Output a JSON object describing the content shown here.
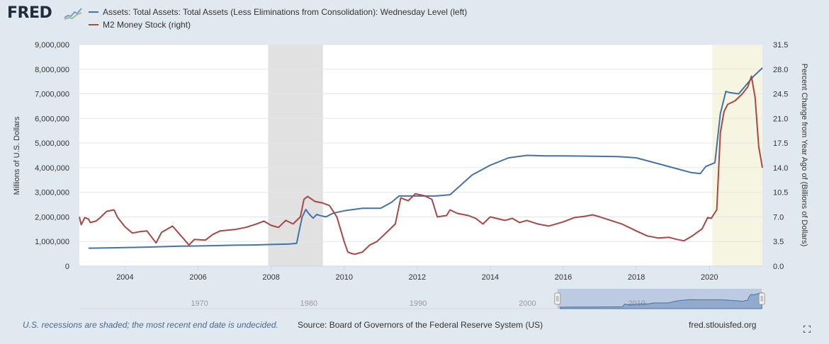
{
  "brand": {
    "logo_text": "FRED"
  },
  "legend": [
    {
      "label": "Assets: Total Assets: Total Assets (Less Eliminations from Consolidation): Wednesday Level (left)",
      "color": "#4572a7"
    },
    {
      "label": "M2 Money Stock (right)",
      "color": "#aa4643"
    }
  ],
  "footer": {
    "note": "U.S. recessions are shaded; the most recent end date is undecided.",
    "source": "Source: Board of Governors of the Federal Reserve System (US)",
    "site": "fred.stlouisfed.org"
  },
  "chart_data": {
    "type": "line",
    "xlabel": "",
    "x_range": [
      2002.75,
      2021.45
    ],
    "x_ticks": [
      "2004",
      "2006",
      "2008",
      "2010",
      "2012",
      "2014",
      "2016",
      "2018",
      "2020"
    ],
    "ylabel_left": "Millions of U.S. Dollars",
    "ylim_left": [
      0,
      9000000
    ],
    "y_ticks_left": [
      "0",
      "1,000,000",
      "2,000,000",
      "3,000,000",
      "4,000,000",
      "5,000,000",
      "6,000,000",
      "7,000,000",
      "8,000,000",
      "9,000,000"
    ],
    "ylabel_right": "Percent Change from Year Ago of (Billions of Dollars)",
    "ylim_right": [
      0,
      31.5
    ],
    "y_ticks_right": [
      "0.0",
      "3.5",
      "7.0",
      "10.5",
      "14.0",
      "17.5",
      "21.0",
      "24.5",
      "28.0",
      "31.5"
    ],
    "grid": true,
    "shaded_periods": [
      {
        "start": 2007.92,
        "end": 2009.42,
        "label": "recession",
        "color": "#e1e1e1"
      },
      {
        "start": 2020.08,
        "end": 2021.45,
        "label": "recession (end undecided)",
        "color": "#f5f5e1"
      }
    ],
    "series": [
      {
        "axis": "left",
        "color": "#4572a7",
        "points": [
          [
            2003.0,
            730000
          ],
          [
            2003.5,
            740000
          ],
          [
            2004.0,
            755000
          ],
          [
            2004.5,
            770000
          ],
          [
            2005.0,
            790000
          ],
          [
            2005.5,
            810000
          ],
          [
            2006.0,
            820000
          ],
          [
            2006.5,
            835000
          ],
          [
            2007.0,
            850000
          ],
          [
            2007.5,
            860000
          ],
          [
            2008.0,
            880000
          ],
          [
            2008.5,
            900000
          ],
          [
            2008.7,
            930000
          ],
          [
            2008.75,
            1300000
          ],
          [
            2008.85,
            2000000
          ],
          [
            2008.95,
            2300000
          ],
          [
            2009.05,
            2100000
          ],
          [
            2009.15,
            1950000
          ],
          [
            2009.25,
            2100000
          ],
          [
            2009.35,
            2050000
          ],
          [
            2009.5,
            2000000
          ],
          [
            2009.7,
            2150000
          ],
          [
            2010.0,
            2250000
          ],
          [
            2010.5,
            2350000
          ],
          [
            2011.0,
            2350000
          ],
          [
            2011.3,
            2600000
          ],
          [
            2011.5,
            2850000
          ],
          [
            2012.0,
            2850000
          ],
          [
            2012.5,
            2850000
          ],
          [
            2012.9,
            2900000
          ],
          [
            2013.2,
            3300000
          ],
          [
            2013.5,
            3700000
          ],
          [
            2014.0,
            4100000
          ],
          [
            2014.5,
            4400000
          ],
          [
            2015.0,
            4500000
          ],
          [
            2015.5,
            4480000
          ],
          [
            2016.0,
            4480000
          ],
          [
            2016.5,
            4470000
          ],
          [
            2017.0,
            4460000
          ],
          [
            2017.5,
            4450000
          ],
          [
            2018.0,
            4400000
          ],
          [
            2018.5,
            4200000
          ],
          [
            2019.0,
            4000000
          ],
          [
            2019.5,
            3800000
          ],
          [
            2019.75,
            3760000
          ],
          [
            2019.9,
            4050000
          ],
          [
            2020.15,
            4200000
          ],
          [
            2020.3,
            6200000
          ],
          [
            2020.45,
            7100000
          ],
          [
            2020.55,
            7050000
          ],
          [
            2020.8,
            7000000
          ],
          [
            2021.0,
            7350000
          ],
          [
            2021.2,
            7700000
          ],
          [
            2021.45,
            8050000
          ]
        ]
      },
      {
        "axis": "right",
        "color": "#aa4643",
        "points": [
          [
            2002.75,
            7.0
          ],
          [
            2002.8,
            5.9
          ],
          [
            2002.9,
            6.9
          ],
          [
            2003.0,
            6.7
          ],
          [
            2003.05,
            6.2
          ],
          [
            2003.2,
            6.4
          ],
          [
            2003.3,
            6.8
          ],
          [
            2003.5,
            7.8
          ],
          [
            2003.7,
            8.0
          ],
          [
            2003.8,
            6.9
          ],
          [
            2004.0,
            5.6
          ],
          [
            2004.2,
            4.7
          ],
          [
            2004.4,
            4.9
          ],
          [
            2004.6,
            5.0
          ],
          [
            2004.85,
            3.3
          ],
          [
            2005.0,
            4.8
          ],
          [
            2005.3,
            5.7
          ],
          [
            2005.5,
            4.5
          ],
          [
            2005.75,
            3.0
          ],
          [
            2005.9,
            3.8
          ],
          [
            2006.2,
            3.7
          ],
          [
            2006.4,
            4.5
          ],
          [
            2006.6,
            5.0
          ],
          [
            2006.8,
            5.1
          ],
          [
            2007.0,
            5.2
          ],
          [
            2007.3,
            5.5
          ],
          [
            2007.6,
            6.0
          ],
          [
            2007.8,
            6.4
          ],
          [
            2008.0,
            5.8
          ],
          [
            2008.2,
            5.5
          ],
          [
            2008.4,
            6.5
          ],
          [
            2008.6,
            6.0
          ],
          [
            2008.8,
            7.0
          ],
          [
            2008.9,
            9.5
          ],
          [
            2009.0,
            9.9
          ],
          [
            2009.2,
            9.2
          ],
          [
            2009.4,
            9.0
          ],
          [
            2009.6,
            8.6
          ],
          [
            2009.8,
            7.0
          ],
          [
            2010.0,
            3.5
          ],
          [
            2010.1,
            2.0
          ],
          [
            2010.2,
            1.8
          ],
          [
            2010.3,
            1.7
          ],
          [
            2010.5,
            2.0
          ],
          [
            2010.7,
            3.0
          ],
          [
            2010.9,
            3.5
          ],
          [
            2011.1,
            4.5
          ],
          [
            2011.4,
            6.0
          ],
          [
            2011.55,
            9.7
          ],
          [
            2011.75,
            9.3
          ],
          [
            2011.95,
            10.3
          ],
          [
            2012.2,
            10.0
          ],
          [
            2012.4,
            9.5
          ],
          [
            2012.55,
            7.0
          ],
          [
            2012.8,
            7.2
          ],
          [
            2012.9,
            8.0
          ],
          [
            2013.1,
            7.5
          ],
          [
            2013.4,
            7.2
          ],
          [
            2013.6,
            6.8
          ],
          [
            2013.8,
            6.0
          ],
          [
            2014.0,
            7.0
          ],
          [
            2014.4,
            6.5
          ],
          [
            2014.6,
            6.8
          ],
          [
            2014.8,
            6.2
          ],
          [
            2015.0,
            6.5
          ],
          [
            2015.3,
            6.0
          ],
          [
            2015.6,
            5.7
          ],
          [
            2015.8,
            6.0
          ],
          [
            2016.0,
            6.3
          ],
          [
            2016.3,
            6.9
          ],
          [
            2016.6,
            7.1
          ],
          [
            2016.8,
            7.3
          ],
          [
            2017.0,
            7.0
          ],
          [
            2017.3,
            6.5
          ],
          [
            2017.6,
            6.0
          ],
          [
            2017.8,
            5.5
          ],
          [
            2018.0,
            5.0
          ],
          [
            2018.3,
            4.3
          ],
          [
            2018.6,
            4.0
          ],
          [
            2018.9,
            4.1
          ],
          [
            2019.1,
            3.8
          ],
          [
            2019.3,
            3.6
          ],
          [
            2019.5,
            4.2
          ],
          [
            2019.8,
            5.3
          ],
          [
            2019.95,
            6.9
          ],
          [
            2020.05,
            6.8
          ],
          [
            2020.2,
            8.0
          ],
          [
            2020.3,
            19.0
          ],
          [
            2020.4,
            22.0
          ],
          [
            2020.5,
            23.0
          ],
          [
            2020.7,
            23.5
          ],
          [
            2020.9,
            24.5
          ],
          [
            2021.05,
            25.5
          ],
          [
            2021.15,
            27.0
          ],
          [
            2021.25,
            24.0
          ],
          [
            2021.35,
            17.0
          ],
          [
            2021.45,
            14.0
          ]
        ]
      }
    ]
  },
  "navigator": {
    "ticks": [
      "1970",
      "1980",
      "1990",
      "2000",
      "2010"
    ],
    "x_range": [
      1959,
      2021.5
    ],
    "selection": [
      2002.75,
      2021.45
    ]
  }
}
